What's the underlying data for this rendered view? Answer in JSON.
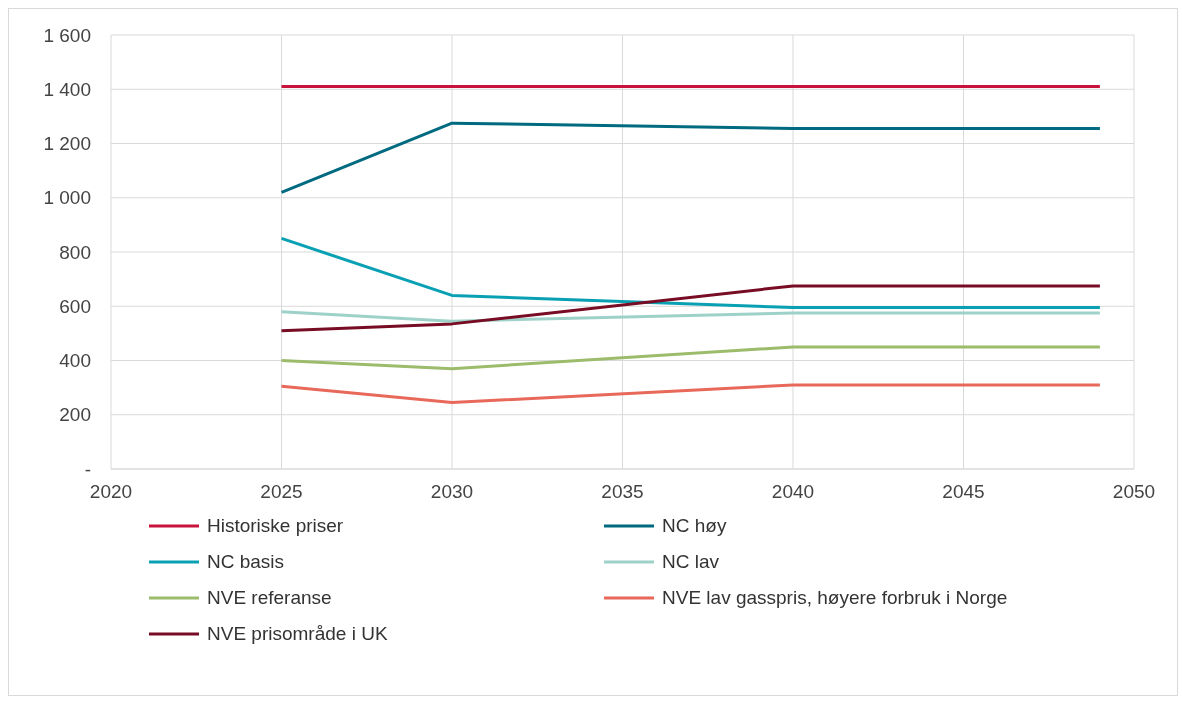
{
  "chart_data": {
    "type": "line",
    "x": [
      2025,
      2030,
      2040,
      2049
    ],
    "series": [
      {
        "name": "Historiske priser",
        "color": "#c8143c",
        "values": [
          1410,
          1410,
          1410,
          1410
        ]
      },
      {
        "name": "NC høy",
        "color": "#006a80",
        "values": [
          1020,
          1275,
          1255,
          1255
        ]
      },
      {
        "name": "NC basis",
        "color": "#0aa0b4",
        "values": [
          850,
          640,
          595,
          595
        ]
      },
      {
        "name": "NC lav",
        "color": "#9ed2c8",
        "values": [
          580,
          545,
          575,
          575
        ]
      },
      {
        "name": "NVE referanse",
        "color": "#9cbc6c",
        "values": [
          400,
          370,
          450,
          450
        ]
      },
      {
        "name": "NVE lav gasspris, høyere forbruk i Norge",
        "color": "#e8685a",
        "values": [
          305,
          245,
          310,
          310
        ]
      },
      {
        "name": "NVE prisområde i UK",
        "color": "#780c24",
        "values": [
          510,
          535,
          675,
          675
        ]
      }
    ],
    "xlim": [
      2020,
      2050
    ],
    "xticks": [
      2020,
      2025,
      2030,
      2035,
      2040,
      2045,
      2050
    ],
    "ylim": [
      0,
      1600
    ],
    "yticks": [
      {
        "value": 0,
        "label": "-"
      },
      200,
      400,
      600,
      800,
      {
        "value": 1000,
        "label": "1 000"
      },
      {
        "value": 1200,
        "label": "1 200"
      },
      {
        "value": 1400,
        "label": "1 400"
      },
      {
        "value": 1600,
        "label": "1 600"
      }
    ],
    "grid": true,
    "legend": "bottom",
    "marker": "none",
    "line_style": "solid"
  }
}
